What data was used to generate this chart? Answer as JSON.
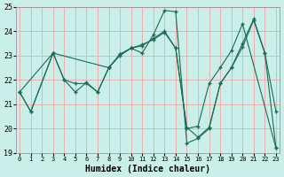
{
  "xlabel": "Humidex (Indice chaleur)",
  "bg_color": "#caeee8",
  "grid_color": "#e8b0b0",
  "line_color": "#1a6b5a",
  "line1_x": [
    0,
    1,
    3,
    4,
    5,
    6,
    7,
    8,
    9,
    10,
    11,
    12,
    13,
    14,
    15,
    16,
    17,
    18,
    19,
    20,
    21,
    22,
    23
  ],
  "line1_y": [
    21.5,
    20.7,
    23.1,
    22.0,
    21.5,
    21.9,
    21.5,
    22.5,
    23.05,
    23.3,
    23.1,
    23.85,
    24.85,
    24.8,
    19.4,
    19.6,
    20.0,
    21.85,
    22.5,
    23.5,
    24.5,
    23.1,
    20.7
  ],
  "line2_x": [
    0,
    3,
    8,
    9,
    10,
    11,
    12,
    13,
    14,
    15,
    16,
    17,
    18,
    19,
    20,
    23
  ],
  "line2_y": [
    21.5,
    23.1,
    22.5,
    23.0,
    23.3,
    23.4,
    23.7,
    24.0,
    23.3,
    20.0,
    20.1,
    21.85,
    22.5,
    23.2,
    24.3,
    19.2
  ],
  "line3_x": [
    0,
    1,
    3,
    4,
    5,
    6,
    7,
    8,
    9,
    10,
    11,
    12,
    13,
    14,
    15,
    16,
    17,
    18,
    19,
    20,
    21,
    22,
    23
  ],
  "line3_y": [
    21.5,
    20.7,
    23.1,
    22.0,
    21.85,
    21.85,
    21.5,
    22.5,
    23.05,
    23.3,
    23.45,
    23.65,
    23.95,
    23.3,
    20.05,
    19.65,
    20.05,
    21.85,
    22.5,
    23.35,
    24.45,
    23.1,
    19.2
  ],
  "ylim": [
    19,
    25
  ],
  "xlim": [
    -0.3,
    23.3
  ],
  "yticks": [
    19,
    20,
    21,
    22,
    23,
    24,
    25
  ],
  "xticks": [
    0,
    1,
    2,
    3,
    4,
    5,
    6,
    7,
    8,
    9,
    10,
    11,
    12,
    13,
    14,
    15,
    16,
    17,
    18,
    19,
    20,
    21,
    22,
    23
  ]
}
